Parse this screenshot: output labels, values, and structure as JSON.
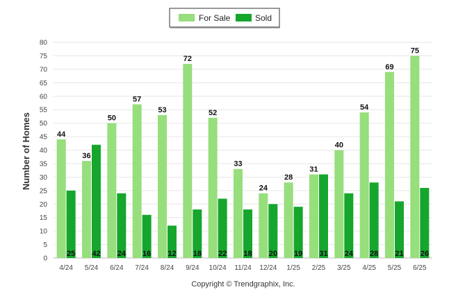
{
  "colors": {
    "for_sale": "#97de7c",
    "sold": "#16a62d",
    "grid": "#e6e6e6"
  },
  "copyright": "Copyright © Trendgraphix, Inc.",
  "chart_data": {
    "type": "bar",
    "categories": [
      "4/24",
      "5/24",
      "6/24",
      "7/24",
      "8/24",
      "9/24",
      "10/24",
      "11/24",
      "12/24",
      "1/25",
      "2/25",
      "3/25",
      "4/25",
      "5/25",
      "6/25"
    ],
    "series": [
      {
        "name": "For Sale",
        "values": [
          44,
          36,
          50,
          57,
          53,
          72,
          52,
          33,
          24,
          28,
          31,
          40,
          54,
          69,
          75
        ]
      },
      {
        "name": "Sold",
        "values": [
          25,
          42,
          24,
          16,
          12,
          18,
          22,
          18,
          20,
          19,
          31,
          24,
          28,
          21,
          26
        ]
      }
    ],
    "title": "",
    "xlabel": "",
    "ylabel": "Number of Homes",
    "ylim": [
      0,
      80
    ],
    "yticks": [
      "0",
      "5",
      "10",
      "15",
      "20",
      "25",
      "30",
      "35",
      "40",
      "45",
      "50",
      "55",
      "60",
      "65",
      "70",
      "75",
      "80"
    ],
    "grid": true,
    "legend": "top-center"
  }
}
